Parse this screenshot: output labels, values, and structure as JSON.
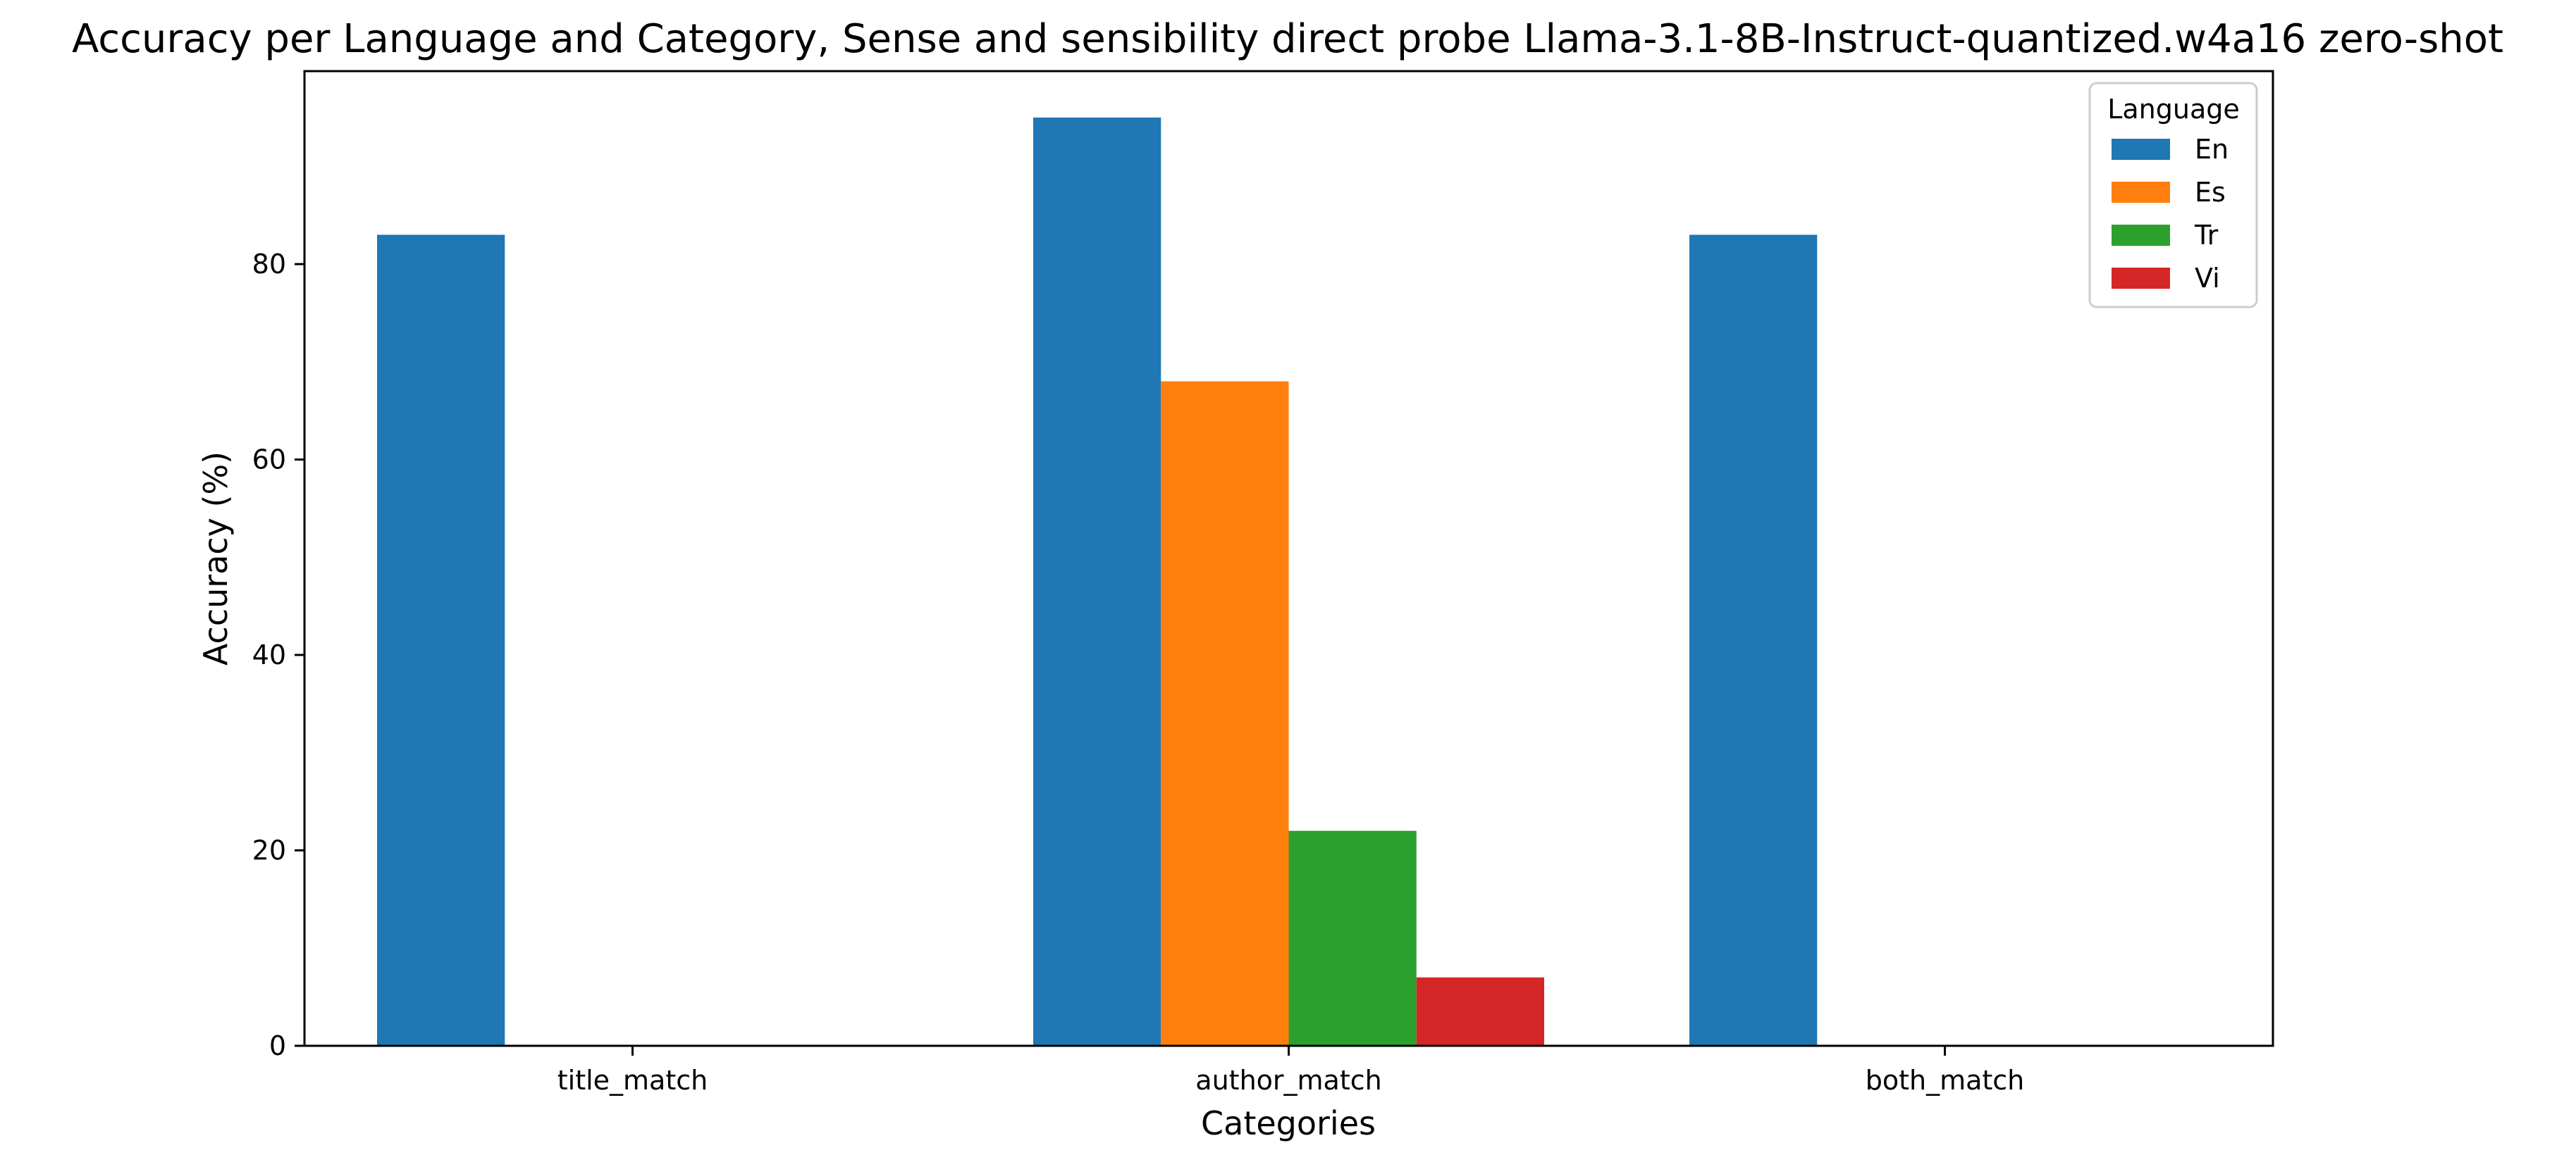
{
  "chart_data": {
    "type": "bar",
    "title": "Accuracy per Language and Category, Sense and sensibility direct probe Llama-3.1-8B-Instruct-quantized.w4a16 zero-shot",
    "xlabel": "Categories",
    "ylabel": "Accuracy (%)",
    "categories": [
      "title_match",
      "author_match",
      "both_match"
    ],
    "ylim": [
      0,
      99.75
    ],
    "yticks": [
      0,
      20,
      40,
      60,
      80
    ],
    "grid": false,
    "legend": {
      "title": "Language",
      "placement": "top-right"
    },
    "series": [
      {
        "name": "En",
        "color": "#1f77b4",
        "values": [
          83,
          95,
          83
        ]
      },
      {
        "name": "Es",
        "color": "#ff7f0e",
        "values": [
          0,
          68,
          0
        ]
      },
      {
        "name": "Tr",
        "color": "#2ca02c",
        "values": [
          0,
          22,
          0
        ]
      },
      {
        "name": "Vi",
        "color": "#d62728",
        "values": [
          0,
          7,
          0
        ]
      }
    ]
  }
}
